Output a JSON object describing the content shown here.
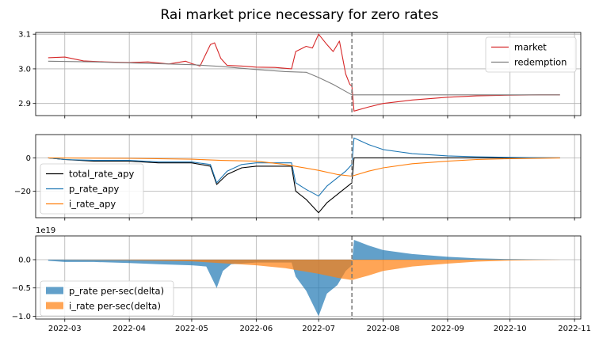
{
  "title": "Rai market price necessary for zero rates",
  "x_axis": {
    "type": "date",
    "range": [
      "2022-02-15",
      "2022-11-04"
    ],
    "ticks": [
      "2022-03",
      "2022-04",
      "2022-05",
      "2022-06",
      "2022-07",
      "2022-08",
      "2022-09",
      "2022-10",
      "2022-11"
    ],
    "tick_dates": [
      "2022-03-01",
      "2022-04-01",
      "2022-05-01",
      "2022-06-01",
      "2022-07-01",
      "2022-08-01",
      "2022-09-01",
      "2022-10-01",
      "2022-11-01"
    ]
  },
  "vline": {
    "date": "2022-07-17",
    "style": "dashed",
    "color": "#777777"
  },
  "colors": {
    "market": "#d62728",
    "redemption": "#7f7f7f",
    "total_rate_apy": "#000000",
    "p_rate_apy": "#1f77b4",
    "i_rate_apy": "#ff7f0e",
    "p_fill": "#1f77b4",
    "i_fill": "#ff7f0e",
    "grid": "#b0b0b0"
  },
  "chart_data": [
    {
      "type": "line",
      "panel": "price",
      "ylim": [
        2.865,
        3.105
      ],
      "yticks": [
        2.9,
        3.0,
        3.1
      ],
      "ytick_labels": [
        "2.9",
        "3.0",
        "3.1"
      ],
      "legend": {
        "placement": "top-right",
        "entries": [
          "market",
          "redemption"
        ]
      },
      "series": [
        {
          "name": "market",
          "x": [
            "2022-02-21",
            "2022-03-01",
            "2022-03-10",
            "2022-03-20",
            "2022-04-01",
            "2022-04-10",
            "2022-04-20",
            "2022-04-28",
            "2022-05-01",
            "2022-05-05",
            "2022-05-10",
            "2022-05-12",
            "2022-05-15",
            "2022-05-18",
            "2022-05-25",
            "2022-06-01",
            "2022-06-10",
            "2022-06-18",
            "2022-06-20",
            "2022-06-25",
            "2022-06-28",
            "2022-07-01",
            "2022-07-05",
            "2022-07-08",
            "2022-07-11",
            "2022-07-14",
            "2022-07-16",
            "2022-07-17",
            "2022-07-18",
            "2022-07-25",
            "2022-08-01",
            "2022-08-15",
            "2022-09-01",
            "2022-09-15",
            "2022-10-01",
            "2022-10-15",
            "2022-10-25"
          ],
          "y": [
            3.032,
            3.034,
            3.023,
            3.02,
            3.018,
            3.02,
            3.014,
            3.022,
            3.015,
            3.008,
            3.07,
            3.075,
            3.03,
            3.01,
            3.008,
            3.005,
            3.004,
            3.0,
            3.05,
            3.065,
            3.06,
            3.1,
            3.07,
            3.05,
            3.08,
            2.985,
            2.955,
            2.95,
            2.878,
            2.89,
            2.9,
            2.91,
            2.918,
            2.922,
            2.924,
            2.925,
            2.925
          ]
        },
        {
          "name": "redemption",
          "x": [
            "2022-02-21",
            "2022-03-15",
            "2022-04-15",
            "2022-05-01",
            "2022-05-15",
            "2022-06-01",
            "2022-06-15",
            "2022-06-25",
            "2022-07-01",
            "2022-07-08",
            "2022-07-17",
            "2022-08-01",
            "2022-10-25"
          ],
          "y": [
            3.022,
            3.02,
            3.015,
            3.012,
            3.007,
            2.998,
            2.992,
            2.99,
            2.975,
            2.955,
            2.925,
            2.925,
            2.925
          ]
        }
      ]
    },
    {
      "type": "line",
      "panel": "apy",
      "ylim": [
        -36,
        14
      ],
      "yticks": [
        0,
        -20
      ],
      "ytick_labels": [
        "0",
        "−20"
      ],
      "legend": {
        "placement": "left",
        "entries": [
          "total_rate_apy",
          "p_rate_apy",
          "i_rate_apy"
        ]
      },
      "series": [
        {
          "name": "total_rate_apy",
          "x": [
            "2022-02-21",
            "2022-03-01",
            "2022-03-15",
            "2022-04-01",
            "2022-04-15",
            "2022-05-01",
            "2022-05-10",
            "2022-05-13",
            "2022-05-18",
            "2022-05-25",
            "2022-06-01",
            "2022-06-10",
            "2022-06-18",
            "2022-06-20",
            "2022-06-25",
            "2022-07-01",
            "2022-07-05",
            "2022-07-10",
            "2022-07-14",
            "2022-07-17",
            "2022-07-18",
            "2022-08-01",
            "2022-10-25"
          ],
          "y": [
            0,
            -1,
            -2,
            -2,
            -3,
            -3,
            -5,
            -16,
            -10,
            -6,
            -5,
            -5,
            -5,
            -20,
            -25,
            -33,
            -27,
            -22,
            -18,
            -15,
            0,
            0,
            0
          ]
        },
        {
          "name": "p_rate_apy",
          "x": [
            "2022-02-21",
            "2022-03-01",
            "2022-03-15",
            "2022-04-01",
            "2022-04-15",
            "2022-05-01",
            "2022-05-10",
            "2022-05-13",
            "2022-05-18",
            "2022-05-25",
            "2022-06-01",
            "2022-06-10",
            "2022-06-18",
            "2022-06-20",
            "2022-06-25",
            "2022-07-01",
            "2022-07-05",
            "2022-07-10",
            "2022-07-14",
            "2022-07-17",
            "2022-07-18",
            "2022-07-25",
            "2022-08-01",
            "2022-08-15",
            "2022-09-01",
            "2022-09-15",
            "2022-10-01",
            "2022-10-25"
          ],
          "y": [
            0,
            -1,
            -1.5,
            -1.5,
            -2.5,
            -2.5,
            -4,
            -15,
            -8,
            -4,
            -3,
            -3,
            -3,
            -15,
            -19,
            -23,
            -17,
            -12,
            -8,
            -4,
            12,
            8,
            5,
            2.5,
            1.2,
            0.6,
            0.3,
            0
          ]
        },
        {
          "name": "i_rate_apy",
          "x": [
            "2022-02-21",
            "2022-04-01",
            "2022-05-01",
            "2022-05-15",
            "2022-06-01",
            "2022-06-15",
            "2022-07-01",
            "2022-07-10",
            "2022-07-17",
            "2022-07-25",
            "2022-08-01",
            "2022-08-15",
            "2022-09-01",
            "2022-09-15",
            "2022-10-01",
            "2022-10-25"
          ],
          "y": [
            0,
            -0.3,
            -0.8,
            -1.5,
            -2,
            -4,
            -7.5,
            -10,
            -11,
            -8,
            -6,
            -3.5,
            -2,
            -1,
            -0.5,
            -0.1
          ]
        }
      ]
    },
    {
      "type": "area",
      "panel": "per_sec",
      "exponent_label": "1e19",
      "ylim": [
        -1.05,
        0.42
      ],
      "yticks": [
        0.0,
        -0.5,
        -1.0
      ],
      "ytick_labels": [
        "0.0",
        "−0.5",
        "−1.0"
      ],
      "legend": {
        "placement": "bottom-left",
        "entries": [
          "p_rate per-sec(delta)",
          "i_rate per-sec(delta)"
        ]
      },
      "series": [
        {
          "name": "p_rate per-sec(delta)",
          "x": [
            "2022-02-21",
            "2022-03-01",
            "2022-03-15",
            "2022-04-01",
            "2022-04-15",
            "2022-05-01",
            "2022-05-08",
            "2022-05-13",
            "2022-05-16",
            "2022-05-20",
            "2022-06-01",
            "2022-06-18",
            "2022-06-20",
            "2022-06-25",
            "2022-07-01",
            "2022-07-05",
            "2022-07-10",
            "2022-07-14",
            "2022-07-17",
            "2022-07-18",
            "2022-07-25",
            "2022-08-01",
            "2022-08-15",
            "2022-09-01",
            "2022-09-15",
            "2022-10-01",
            "2022-10-25"
          ],
          "y": [
            -0.02,
            -0.04,
            -0.04,
            -0.06,
            -0.08,
            -0.1,
            -0.12,
            -0.5,
            -0.2,
            -0.08,
            -0.05,
            -0.05,
            -0.3,
            -0.55,
            -1.0,
            -0.6,
            -0.45,
            -0.2,
            -0.1,
            0.35,
            0.25,
            0.17,
            0.1,
            0.05,
            0.025,
            0.01,
            0
          ]
        },
        {
          "name": "i_rate per-sec(delta)",
          "x": [
            "2022-02-21",
            "2022-04-01",
            "2022-05-01",
            "2022-06-01",
            "2022-06-15",
            "2022-07-01",
            "2022-07-10",
            "2022-07-17",
            "2022-07-25",
            "2022-08-01",
            "2022-08-15",
            "2022-09-01",
            "2022-09-15",
            "2022-10-01",
            "2022-10-25"
          ],
          "y": [
            0,
            -0.01,
            -0.03,
            -0.1,
            -0.15,
            -0.25,
            -0.32,
            -0.36,
            -0.28,
            -0.2,
            -0.12,
            -0.07,
            -0.035,
            -0.015,
            -0.002
          ]
        }
      ]
    }
  ]
}
